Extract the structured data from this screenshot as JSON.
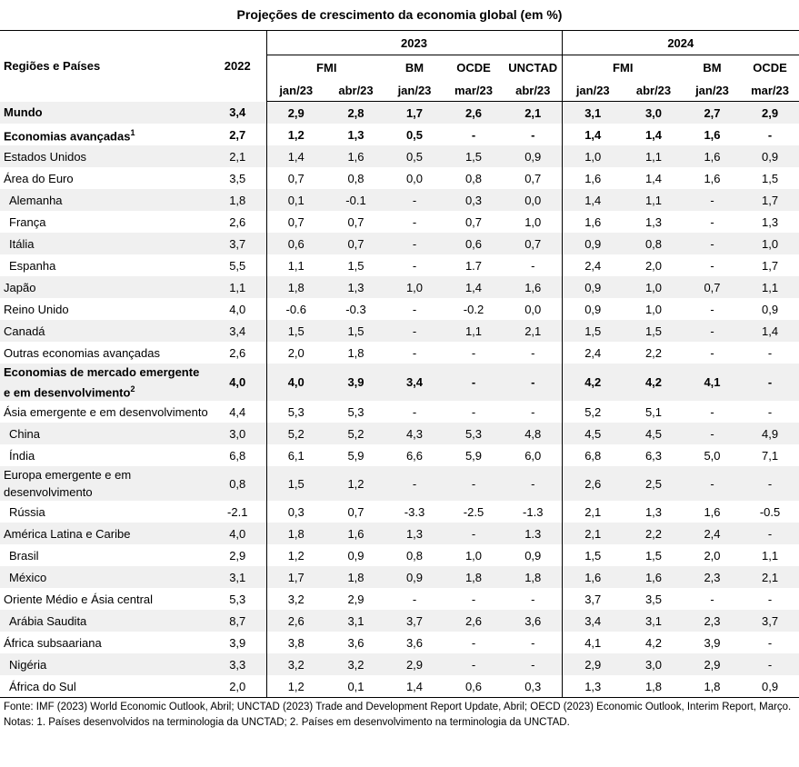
{
  "title": "Projeções de crescimento da economia global (em %)",
  "header": {
    "region_label": "Regiões e Países",
    "base_year": "2022",
    "years": [
      {
        "label": "2023",
        "sources": [
          {
            "label": "FMI",
            "months": [
              "jan/23",
              "abr/23"
            ]
          },
          {
            "label": "BM",
            "months": [
              "jan/23"
            ]
          },
          {
            "label": "OCDE",
            "months": [
              "mar/23"
            ]
          },
          {
            "label": "UNCTAD",
            "months": [
              "abr/23"
            ]
          }
        ]
      },
      {
        "label": "2024",
        "sources": [
          {
            "label": "FMI",
            "months": [
              "jan/23",
              "abr/23"
            ]
          },
          {
            "label": "BM",
            "months": [
              "jan/23"
            ]
          },
          {
            "label": "OCDE",
            "months": [
              "mar/23"
            ]
          }
        ]
      }
    ]
  },
  "rows": [
    {
      "name": "Mundo",
      "bold": true,
      "values": [
        "3,4",
        "2,9",
        "2,8",
        "1,7",
        "2,6",
        "2,1",
        "3,1",
        "3,0",
        "2,7",
        "2,9"
      ]
    },
    {
      "name": "Economias avançadas",
      "note": "1",
      "bold": true,
      "values": [
        "2,7",
        "1,2",
        "1,3",
        "0,5",
        "-",
        "-",
        "1,4",
        "1,4",
        "1,6",
        "-"
      ]
    },
    {
      "name": "Estados Unidos",
      "values": [
        "2,1",
        "1,4",
        "1,6",
        "0,5",
        "1,5",
        "0,9",
        "1,0",
        "1,1",
        "1,6",
        "0,9"
      ]
    },
    {
      "name": "Área do Euro",
      "values": [
        "3,5",
        "0,7",
        "0,8",
        "0,0",
        "0,8",
        "0,7",
        "1,6",
        "1,4",
        "1,6",
        "1,5"
      ]
    },
    {
      "name": "Alemanha",
      "indent": true,
      "values": [
        "1,8",
        "0,1",
        "-0.1",
        "-",
        "0,3",
        "0,0",
        "1,4",
        "1,1",
        "-",
        "1,7"
      ]
    },
    {
      "name": "França",
      "indent": true,
      "values": [
        "2,6",
        "0,7",
        "0,7",
        "-",
        "0,7",
        "1,0",
        "1,6",
        "1,3",
        "-",
        "1,3"
      ]
    },
    {
      "name": "Itália",
      "indent": true,
      "values": [
        "3,7",
        "0,6",
        "0,7",
        "-",
        "0,6",
        "0,7",
        "0,9",
        "0,8",
        "-",
        "1,0"
      ]
    },
    {
      "name": "Espanha",
      "indent": true,
      "values": [
        "5,5",
        "1,1",
        "1,5",
        "-",
        "1.7",
        "-",
        "2,4",
        "2,0",
        "-",
        "1,7"
      ]
    },
    {
      "name": "Japão",
      "values": [
        "1,1",
        "1,8",
        "1,3",
        "1,0",
        "1,4",
        "1,6",
        "0,9",
        "1,0",
        "0,7",
        "1,1"
      ]
    },
    {
      "name": "Reino Unido",
      "values": [
        "4,0",
        "-0.6",
        "-0.3",
        "-",
        "-0.2",
        "0,0",
        "0,9",
        "1,0",
        "-",
        "0,9"
      ]
    },
    {
      "name": "Canadá",
      "values": [
        "3,4",
        "1,5",
        "1,5",
        "-",
        "1,1",
        "2,1",
        "1,5",
        "1,5",
        "-",
        "1,4"
      ]
    },
    {
      "name": "Outras economias avançadas",
      "values": [
        "2,6",
        "2,0",
        "1,8",
        "-",
        "-",
        "-",
        "2,4",
        "2,2",
        "-",
        "-"
      ]
    },
    {
      "name": "Economias de mercado emergente e em desenvolvimento",
      "note": "2",
      "bold": true,
      "values": [
        "4,0",
        "4,0",
        "3,9",
        "3,4",
        "-",
        "-",
        "4,2",
        "4,2",
        "4,1",
        "-"
      ]
    },
    {
      "name": "Ásia emergente e em desenvolvimento",
      "values": [
        "4,4",
        "5,3",
        "5,3",
        "-",
        "-",
        "-",
        "5,2",
        "5,1",
        "-",
        "-"
      ]
    },
    {
      "name": "China",
      "indent": true,
      "values": [
        "3,0",
        "5,2",
        "5,2",
        "4,3",
        "5,3",
        "4,8",
        "4,5",
        "4,5",
        "-",
        "4,9"
      ]
    },
    {
      "name": "Índia",
      "indent": true,
      "values": [
        "6,8",
        "6,1",
        "5,9",
        "6,6",
        "5,9",
        "6,0",
        "6,8",
        "6,3",
        "5,0",
        "7,1"
      ]
    },
    {
      "name": "Europa emergente e em desenvolvimento",
      "values": [
        "0,8",
        "1,5",
        "1,2",
        "-",
        "-",
        "-",
        "2,6",
        "2,5",
        "-",
        "-"
      ]
    },
    {
      "name": "Rússia",
      "indent": true,
      "values": [
        "-2.1",
        "0,3",
        "0,7",
        "-3.3",
        "-2.5",
        "-1.3",
        "2,1",
        "1,3",
        "1,6",
        "-0.5"
      ]
    },
    {
      "name": "América Latina e Caribe",
      "values": [
        "4,0",
        "1,8",
        "1,6",
        "1,3",
        "-",
        "1.3",
        "2,1",
        "2,2",
        "2,4",
        "-"
      ]
    },
    {
      "name": "Brasil",
      "indent": true,
      "values": [
        "2,9",
        "1,2",
        "0,9",
        "0,8",
        "1,0",
        "0,9",
        "1,5",
        "1,5",
        "2,0",
        "1,1"
      ]
    },
    {
      "name": "México",
      "indent": true,
      "values": [
        "3,1",
        "1,7",
        "1,8",
        "0,9",
        "1,8",
        "1,8",
        "1,6",
        "1,6",
        "2,3",
        "2,1"
      ]
    },
    {
      "name": "Oriente Médio e Ásia central",
      "values": [
        "5,3",
        "3,2",
        "2,9",
        "-",
        "-",
        "-",
        "3,7",
        "3,5",
        "-",
        "-"
      ]
    },
    {
      "name": "Arábia Saudita",
      "indent": true,
      "values": [
        "8,7",
        "2,6",
        "3,1",
        "3,7",
        "2,6",
        "3,6",
        "3,4",
        "3,1",
        "2,3",
        "3,7"
      ]
    },
    {
      "name": "África subsaariana",
      "values": [
        "3,9",
        "3,8",
        "3,6",
        "3,6",
        "-",
        "-",
        "4,1",
        "4,2",
        "3,9",
        "-"
      ]
    },
    {
      "name": "Nigéria",
      "indent": true,
      "values": [
        "3,3",
        "3,2",
        "3,2",
        "2,9",
        "-",
        "-",
        "2,9",
        "3,0",
        "2,9",
        "-"
      ]
    },
    {
      "name": "África do Sul",
      "indent": true,
      "values": [
        "2,0",
        "1,2",
        "0,1",
        "1,4",
        "0,6",
        "0,3",
        "1,3",
        "1,8",
        "1,8",
        "0,9"
      ]
    }
  ],
  "footnotes": [
    "Fonte: IMF (2023) World Economic Outlook, Abril; UNCTAD (2023) Trade and Development Report Update, Abril; OECD (2023) Economic Outlook, Interim Report, Março.",
    "Notas: 1. Países desenvolvidos na terminologia da UNCTAD; 2. Países em desenvolvimento na terminologia da UNCTAD."
  ]
}
